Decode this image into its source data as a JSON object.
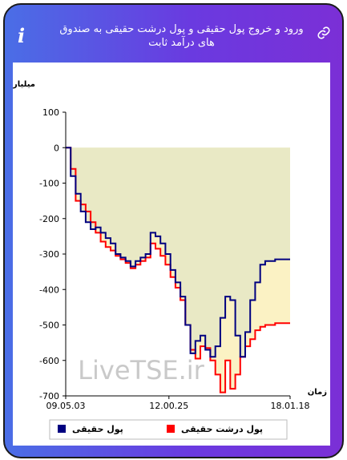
{
  "header": {
    "title": "ورود و خروج پول حقیقی و پول درشت حقیقی به صندوق های درآمد ثابت",
    "info_icon": "info-icon",
    "link_icon": "link-icon",
    "gradient_start": "#4a6ee6",
    "gradient_end": "#7b2fd6"
  },
  "chart_data": {
    "type": "line",
    "title": "",
    "ylabel": "میلیارد تومان",
    "xlabel": "زمان",
    "ylim": [
      -700,
      100
    ],
    "yticks": [
      "100",
      "0",
      "-100",
      "-200",
      "-300",
      "-400",
      "-500",
      "-600",
      "-700"
    ],
    "xticks": [
      "09.05.03",
      "12.00.25",
      "18.01.18"
    ],
    "grid": false,
    "legend_position": "bottom",
    "watermark": "LiveTSE.ir",
    "series": [
      {
        "name": "پول حقیقی",
        "color": "#000080",
        "fill": "#e8f4f4",
        "values": [
          0,
          -80,
          -130,
          -180,
          -210,
          -230,
          -225,
          -240,
          -255,
          -270,
          -300,
          -310,
          -320,
          -335,
          -320,
          -310,
          -300,
          -240,
          -250,
          -270,
          -300,
          -345,
          -380,
          -420,
          -500,
          -580,
          -545,
          -530,
          -570,
          -590,
          -560,
          -480,
          -420,
          -430,
          -530,
          -590,
          -520,
          -430,
          -380,
          -330,
          -320,
          -320,
          -315,
          -315,
          -315,
          -315
        ]
      },
      {
        "name": "پول درشت حقیقی",
        "color": "#ff0000",
        "fill": "#fbf2c4",
        "values": [
          0,
          -60,
          -150,
          -160,
          -180,
          -210,
          -240,
          -265,
          -280,
          -290,
          -305,
          -315,
          -325,
          -340,
          -330,
          -320,
          -310,
          -270,
          -285,
          -305,
          -330,
          -365,
          -395,
          -430,
          -500,
          -570,
          -595,
          -560,
          -565,
          -600,
          -640,
          -690,
          -600,
          -680,
          -640,
          -590,
          -560,
          -540,
          -515,
          -505,
          -500,
          -500,
          -495,
          -495,
          -495,
          -495
        ]
      }
    ]
  }
}
